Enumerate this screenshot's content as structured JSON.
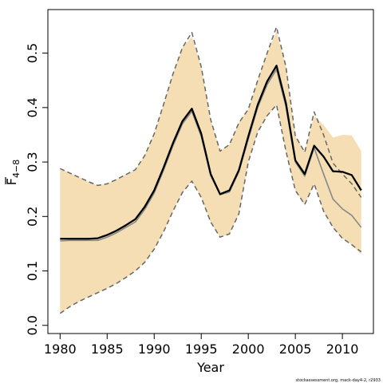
{
  "chart_data": {
    "type": "line",
    "xlabel": "Year",
    "ylabel_base": "F",
    "ylabel_sub": "4−8",
    "xlim": [
      1978.7,
      2013.3
    ],
    "ylim": [
      -0.015,
      0.58
    ],
    "x_ticks": [
      1980,
      1985,
      1990,
      1995,
      2000,
      2005,
      2010
    ],
    "y_ticks": [
      0.0,
      0.1,
      0.2,
      0.3,
      0.4,
      0.5
    ],
    "y_tick_labels": [
      "0.0",
      "0.1",
      "0.2",
      "0.3",
      "0.4",
      "0.5"
    ],
    "grid": false,
    "years": [
      1980,
      1981,
      1982,
      1983,
      1984,
      1985,
      1986,
      1987,
      1988,
      1989,
      1990,
      1991,
      1992,
      1993,
      1994,
      1995,
      1996,
      1997,
      1998,
      1999,
      2000,
      2001,
      2002,
      2003,
      2004,
      2005,
      2006,
      2007,
      2008,
      2009,
      2010,
      2011,
      2012
    ],
    "band": {
      "color": "#f5deb3",
      "upper": [
        0.288,
        0.28,
        0.272,
        0.264,
        0.257,
        0.26,
        0.268,
        0.277,
        0.286,
        0.312,
        0.352,
        0.406,
        0.462,
        0.51,
        0.53,
        0.475,
        0.378,
        0.32,
        0.332,
        0.372,
        0.397,
        0.45,
        0.5,
        0.54,
        0.475,
        0.348,
        0.318,
        0.385,
        0.368,
        0.345,
        0.35,
        0.349,
        0.32
      ],
      "lower": [
        0.022,
        0.034,
        0.044,
        0.052,
        0.06,
        0.068,
        0.077,
        0.088,
        0.1,
        0.116,
        0.14,
        0.172,
        0.21,
        0.244,
        0.265,
        0.235,
        0.19,
        0.162,
        0.168,
        0.205,
        0.3,
        0.355,
        0.385,
        0.405,
        0.32,
        0.248,
        0.222,
        0.26,
        0.21,
        0.18,
        0.16,
        0.148,
        0.13
      ]
    },
    "series": [
      {
        "color": "#000000",
        "style": "solid-thick",
        "values": [
          0.159,
          0.159,
          0.159,
          0.159,
          0.16,
          0.166,
          0.174,
          0.184,
          0.195,
          0.218,
          0.248,
          0.29,
          0.335,
          0.375,
          0.398,
          0.352,
          0.278,
          0.241,
          0.248,
          0.285,
          0.347,
          0.405,
          0.448,
          0.477,
          0.408,
          0.303,
          0.278,
          0.33,
          0.31,
          0.283,
          0.282,
          0.276,
          0.248
        ]
      },
      {
        "color": "#888888",
        "style": "solid-thin",
        "values": [
          0.155,
          0.156,
          0.156,
          0.156,
          0.156,
          0.162,
          0.17,
          0.18,
          0.19,
          0.213,
          0.243,
          0.285,
          0.33,
          0.37,
          0.393,
          0.347,
          0.275,
          0.24,
          0.245,
          0.282,
          0.342,
          0.4,
          0.442,
          0.47,
          0.402,
          0.3,
          0.274,
          0.326,
          0.278,
          0.232,
          0.214,
          0.202,
          0.18
        ]
      },
      {
        "color": "#666666",
        "style": "dashed",
        "values": [
          0.288,
          0.28,
          0.272,
          0.264,
          0.257,
          0.26,
          0.268,
          0.277,
          0.286,
          0.312,
          0.352,
          0.406,
          0.462,
          0.51,
          0.538,
          0.475,
          0.378,
          0.32,
          0.332,
          0.372,
          0.397,
          0.45,
          0.5,
          0.548,
          0.475,
          0.348,
          0.318,
          0.392,
          0.35,
          0.298,
          0.278,
          0.26,
          0.235
        ]
      },
      {
        "color": "#666666",
        "style": "dashed",
        "values": [
          0.022,
          0.034,
          0.044,
          0.052,
          0.06,
          0.068,
          0.077,
          0.088,
          0.1,
          0.116,
          0.14,
          0.172,
          0.21,
          0.244,
          0.265,
          0.235,
          0.19,
          0.162,
          0.168,
          0.205,
          0.3,
          0.355,
          0.385,
          0.405,
          0.32,
          0.248,
          0.222,
          0.26,
          0.21,
          0.18,
          0.16,
          0.148,
          0.135
        ]
      }
    ]
  },
  "credit_text": "stockassessment.org, mack-day4-2, r2933"
}
